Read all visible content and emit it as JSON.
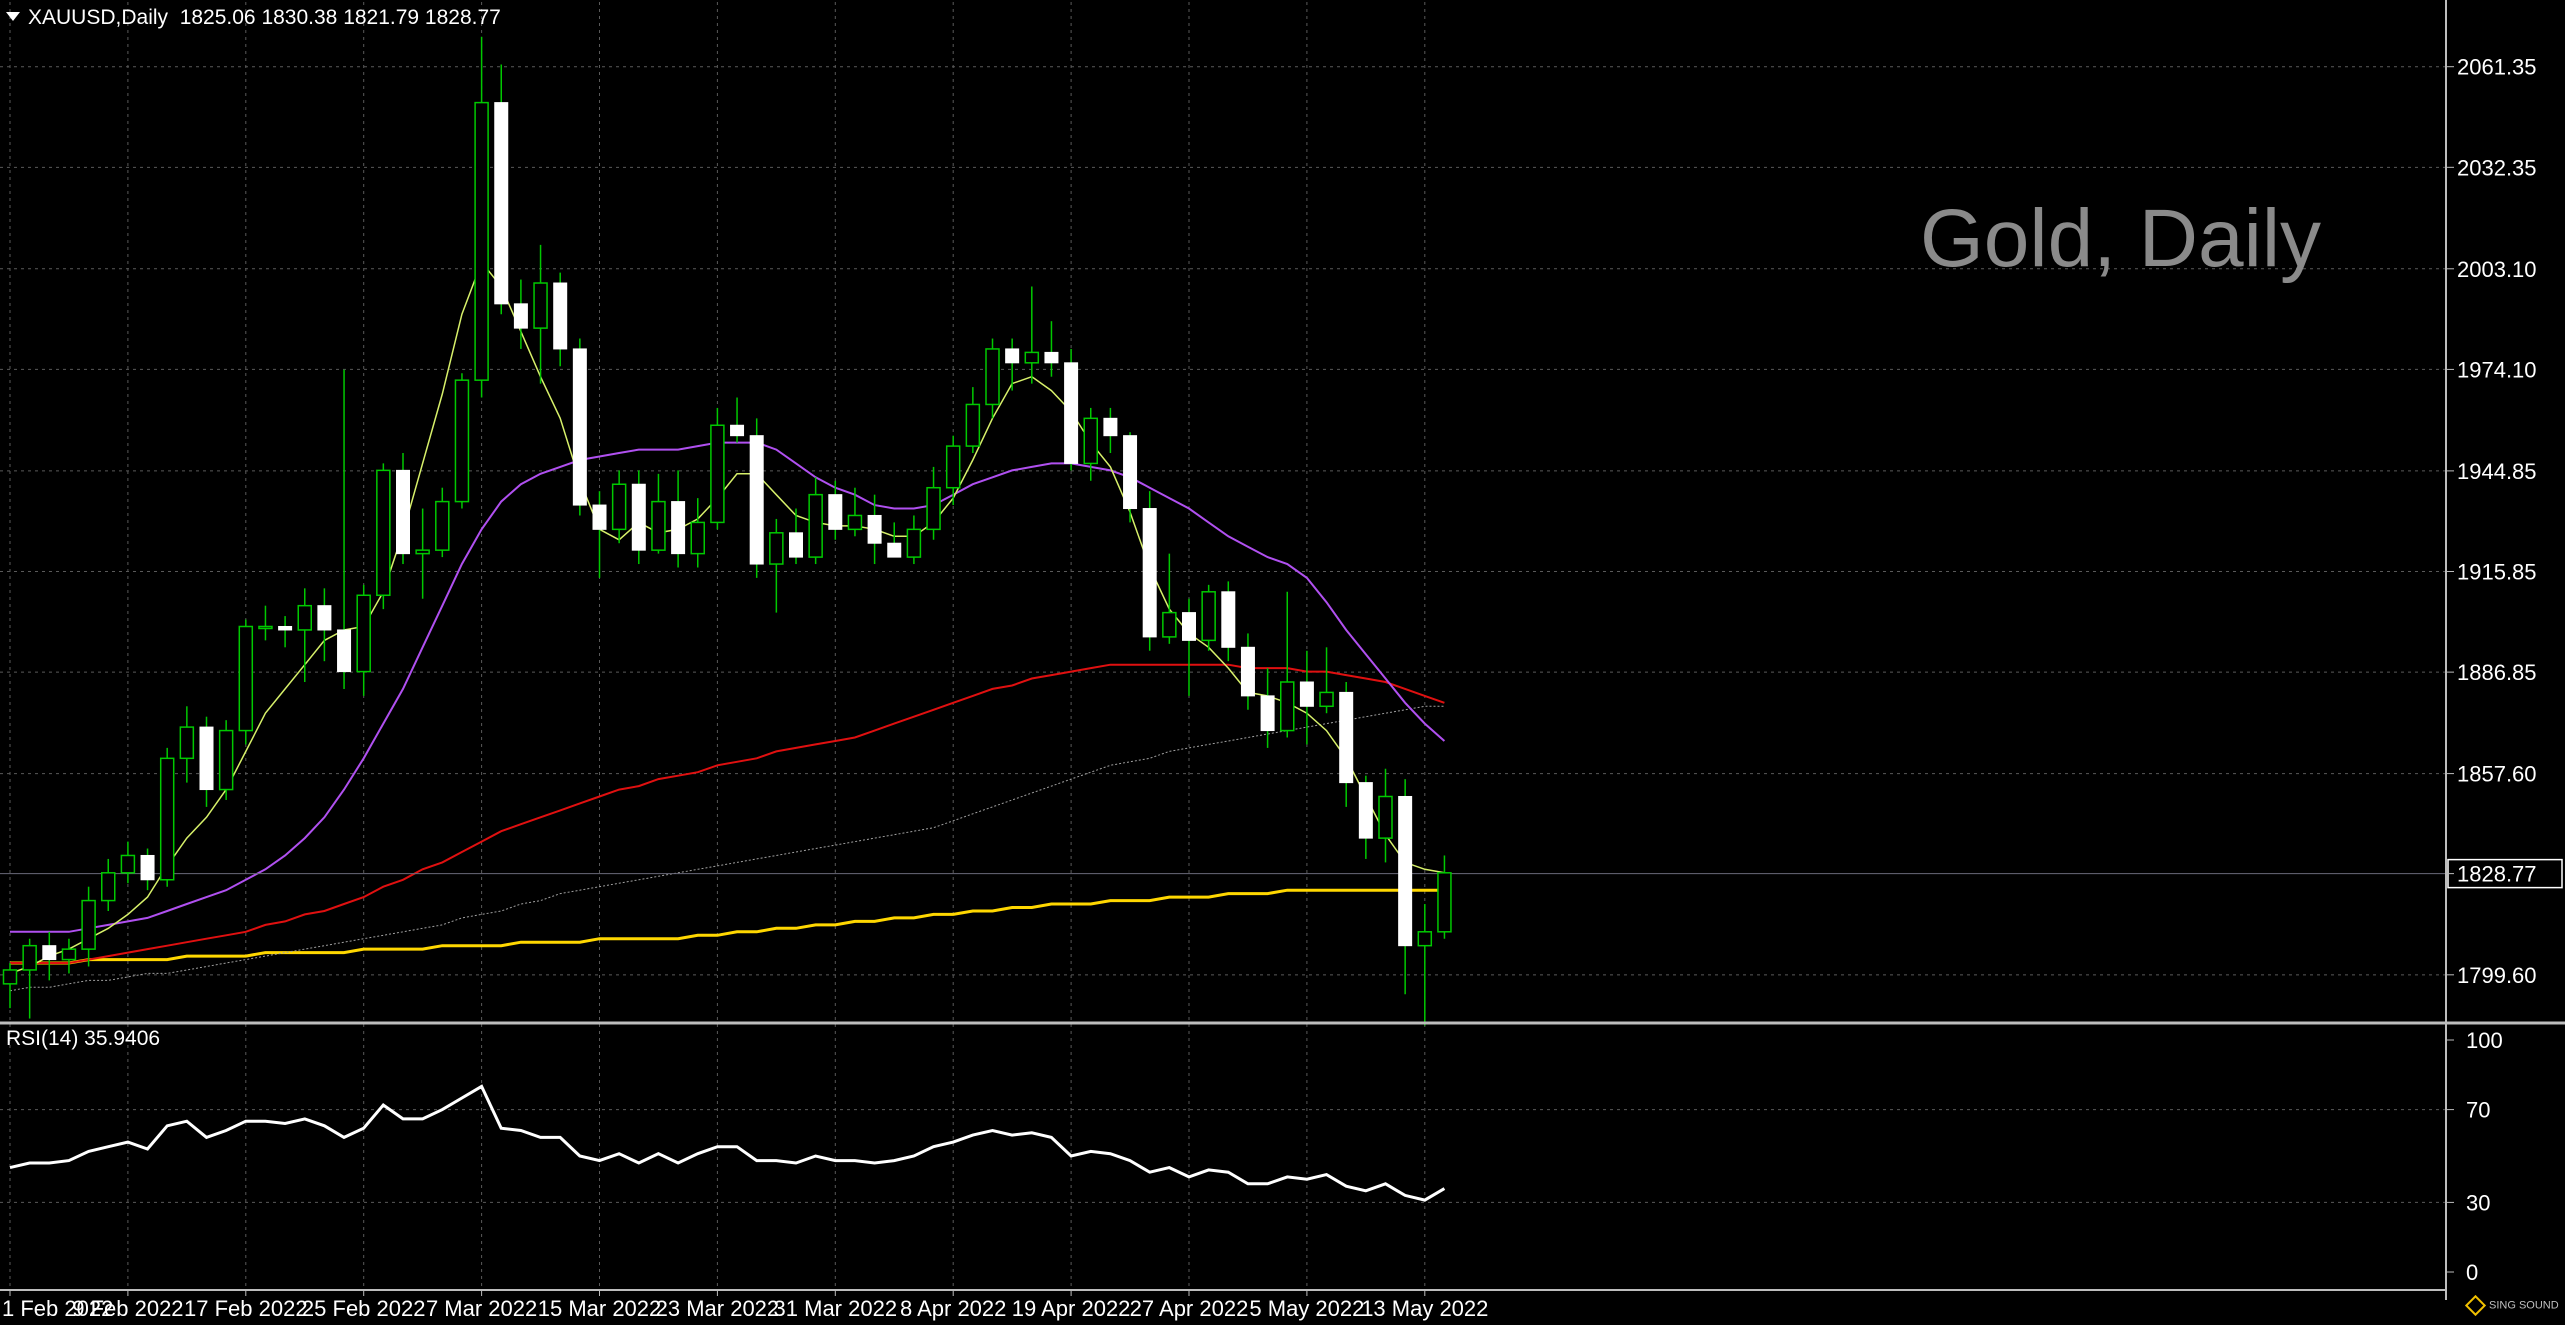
{
  "header": {
    "symbol": "XAUUSD,Daily",
    "ohlc": "1825.06 1830.38 1821.79 1828.77",
    "rsi_label": "RSI(14) 35.9406",
    "watermark": "Gold, Daily",
    "brand": "SING SOUND"
  },
  "colors": {
    "background": "#000000",
    "grid": "#5a5a5a",
    "axis_text": "#ffffff",
    "bull_candle": "#00c800",
    "bear_candle": "#ffffff",
    "ma_fast": "#d7f06a",
    "ma_20": "#b050f0",
    "ma_50": "#e01010",
    "ma_100": "#a0a0a0",
    "ma_200": "#ffd700",
    "rsi_line": "#ffffff",
    "current_price_line": "#6a6a7a"
  },
  "chart_data": [
    {
      "type": "candlestick",
      "title": "XAUUSD,Daily",
      "ylim": [
        1786.0,
        2080.0
      ],
      "y_ticks": [
        1799.6,
        1828.77,
        1857.6,
        1886.85,
        1915.85,
        1944.85,
        1974.1,
        2003.1,
        2032.35,
        2061.35
      ],
      "y_tick_labels": [
        "1799.60",
        "1828.77",
        "1857.60",
        "1886.85",
        "1915.85",
        "1944.85",
        "1974.10",
        "2003.10",
        "2032.35",
        "2061.35"
      ],
      "current_price": 1828.77,
      "x_tick_labels": [
        "1 Feb 2022",
        "9 Feb 2022",
        "17 Feb 2022",
        "25 Feb 2022",
        "7 Mar 2022",
        "15 Mar 2022",
        "23 Mar 2022",
        "31 Mar 2022",
        "8 Apr 2022",
        "19 Apr 2022",
        "27 Apr 2022",
        "5 May 2022",
        "13 May 2022"
      ],
      "dates": [
        "1 Feb 2022",
        "2 Feb 2022",
        "3 Feb 2022",
        "4 Feb 2022",
        "7 Feb 2022",
        "8 Feb 2022",
        "9 Feb 2022",
        "10 Feb 2022",
        "11 Feb 2022",
        "14 Feb 2022",
        "15 Feb 2022",
        "16 Feb 2022",
        "17 Feb 2022",
        "18 Feb 2022",
        "21 Feb 2022",
        "22 Feb 2022",
        "23 Feb 2022",
        "24 Feb 2022",
        "25 Feb 2022",
        "28 Feb 2022",
        "1 Mar 2022",
        "2 Mar 2022",
        "3 Mar 2022",
        "4 Mar 2022",
        "7 Mar 2022",
        "8 Mar 2022",
        "9 Mar 2022",
        "10 Mar 2022",
        "11 Mar 2022",
        "14 Mar 2022",
        "15 Mar 2022",
        "16 Mar 2022",
        "17 Mar 2022",
        "18 Mar 2022",
        "21 Mar 2022",
        "22 Mar 2022",
        "23 Mar 2022",
        "24 Mar 2022",
        "25 Mar 2022",
        "28 Mar 2022",
        "29 Mar 2022",
        "30 Mar 2022",
        "31 Mar 2022",
        "1 Apr 2022",
        "4 Apr 2022",
        "5 Apr 2022",
        "6 Apr 2022",
        "7 Apr 2022",
        "8 Apr 2022",
        "11 Apr 2022",
        "12 Apr 2022",
        "13 Apr 2022",
        "14 Apr 2022",
        "18 Apr 2022",
        "19 Apr 2022",
        "20 Apr 2022",
        "21 Apr 2022",
        "22 Apr 2022",
        "25 Apr 2022",
        "26 Apr 2022",
        "27 Apr 2022",
        "28 Apr 2022",
        "29 Apr 2022",
        "2 May 2022",
        "3 May 2022",
        "4 May 2022",
        "5 May 2022",
        "6 May 2022",
        "9 May 2022",
        "10 May 2022",
        "11 May 2022",
        "12 May 2022",
        "13 May 2022",
        "16 May 2022"
      ],
      "open": [
        1797,
        1801,
        1808,
        1804,
        1807,
        1821,
        1829,
        1834,
        1827,
        1862,
        1871,
        1853,
        1870,
        1900,
        1900,
        1899,
        1906,
        1899,
        1887,
        1909,
        1945,
        1921,
        1922,
        1936,
        1971,
        2051,
        1993,
        1986,
        1999,
        1980,
        1935,
        1928,
        1941,
        1922,
        1936,
        1921,
        1930,
        1958,
        1955,
        1918,
        1927,
        1920,
        1938,
        1928,
        1932,
        1924,
        1920,
        1928,
        1940,
        1952,
        1964,
        1980,
        1976,
        1979,
        1976,
        1947,
        1960,
        1955,
        1934,
        1897,
        1904,
        1896,
        1910,
        1894,
        1880,
        1870,
        1884,
        1877,
        1881,
        1855,
        1839,
        1851,
        1808,
        1812
      ],
      "close": [
        1801,
        1808,
        1804,
        1807,
        1821,
        1829,
        1834,
        1827,
        1862,
        1871,
        1853,
        1870,
        1900,
        1900,
        1899,
        1906,
        1899,
        1887,
        1909,
        1945,
        1921,
        1922,
        1936,
        1971,
        2051,
        1993,
        1986,
        1999,
        1980,
        1935,
        1928,
        1941,
        1922,
        1936,
        1921,
        1930,
        1958,
        1955,
        1918,
        1927,
        1920,
        1938,
        1928,
        1932,
        1924,
        1920,
        1928,
        1940,
        1952,
        1964,
        1980,
        1976,
        1979,
        1976,
        1947,
        1960,
        1955,
        1934,
        1897,
        1904,
        1896,
        1910,
        1894,
        1880,
        1870,
        1884,
        1877,
        1881,
        1855,
        1839,
        1851,
        1808,
        1812,
        1829
      ],
      "high": [
        1803,
        1810,
        1812,
        1810,
        1825,
        1833,
        1838,
        1836,
        1865,
        1877,
        1874,
        1873,
        1902,
        1906,
        1903,
        1911,
        1911,
        1974,
        1912,
        1947,
        1950,
        1934,
        1940,
        1973,
        2070,
        2062,
        2000,
        2010,
        2002,
        1983,
        1939,
        1945,
        1945,
        1944,
        1945,
        1937,
        1963,
        1966,
        1960,
        1931,
        1934,
        1943,
        1942,
        1940,
        1938,
        1930,
        1932,
        1946,
        1955,
        1969,
        1983,
        1983,
        1998,
        1988,
        1980,
        1963,
        1963,
        1956,
        1939,
        1921,
        1908,
        1912,
        1913,
        1898,
        1888,
        1910,
        1893,
        1894,
        1884,
        1857,
        1859,
        1856,
        1820,
        1834
      ],
      "low": [
        1790,
        1787,
        1798,
        1800,
        1802,
        1818,
        1826,
        1824,
        1825,
        1855,
        1848,
        1850,
        1866,
        1896,
        1894,
        1884,
        1890,
        1882,
        1880,
        1905,
        1918,
        1908,
        1920,
        1934,
        1966,
        1990,
        1980,
        1970,
        1975,
        1932,
        1914,
        1924,
        1918,
        1921,
        1917,
        1917,
        1928,
        1953,
        1914,
        1904,
        1918,
        1918,
        1925,
        1926,
        1918,
        1920,
        1918,
        1925,
        1935,
        1950,
        1960,
        1968,
        1970,
        1972,
        1945,
        1942,
        1950,
        1930,
        1893,
        1895,
        1880,
        1893,
        1890,
        1876,
        1865,
        1868,
        1866,
        1875,
        1848,
        1833,
        1832,
        1794,
        1785,
        1810
      ],
      "ma_fast": [
        1800,
        1802,
        1805,
        1807,
        1810,
        1813,
        1817,
        1822,
        1831,
        1839,
        1845,
        1853,
        1864,
        1875,
        1882,
        1889,
        1896,
        1899,
        1900,
        1910,
        1927,
        1947,
        1967,
        1990,
        2005,
        1998,
        1985,
        1972,
        1960,
        1942,
        1928,
        1925,
        1930,
        1927,
        1928,
        1931,
        1937,
        1944,
        1944,
        1938,
        1932,
        1930,
        1929,
        1929,
        1928,
        1926,
        1926,
        1930,
        1937,
        1948,
        1960,
        1970,
        1972,
        1968,
        1962,
        1953,
        1946,
        1933,
        1917,
        1905,
        1898,
        1894,
        1888,
        1881,
        1880,
        1878,
        1875,
        1870,
        1862,
        1851,
        1840,
        1832,
        1830,
        1829
      ],
      "ma_20": [
        1812,
        1812,
        1812,
        1812,
        1813,
        1814,
        1815,
        1816,
        1818,
        1820,
        1822,
        1824,
        1827,
        1830,
        1834,
        1839,
        1845,
        1853,
        1862,
        1872,
        1882,
        1894,
        1906,
        1918,
        1928,
        1936,
        1941,
        1944,
        1946,
        1948,
        1949,
        1950,
        1951,
        1951,
        1951,
        1952,
        1953,
        1953,
        1953,
        1951,
        1947,
        1943,
        1940,
        1938,
        1935,
        1934,
        1934,
        1935,
        1938,
        1941,
        1943,
        1945,
        1946,
        1947,
        1947,
        1946,
        1945,
        1943,
        1940,
        1937,
        1934,
        1930,
        1926,
        1923,
        1920,
        1918,
        1914,
        1907,
        1899,
        1892,
        1885,
        1878,
        1872,
        1867
      ],
      "ma_50": [
        1803,
        1803,
        1803,
        1803,
        1804,
        1805,
        1806,
        1807,
        1808,
        1809,
        1810,
        1811,
        1812,
        1814,
        1815,
        1817,
        1818,
        1820,
        1822,
        1825,
        1827,
        1830,
        1832,
        1835,
        1838,
        1841,
        1843,
        1845,
        1847,
        1849,
        1851,
        1853,
        1854,
        1856,
        1857,
        1858,
        1860,
        1861,
        1862,
        1864,
        1865,
        1866,
        1867,
        1868,
        1870,
        1872,
        1874,
        1876,
        1878,
        1880,
        1882,
        1883,
        1885,
        1886,
        1887,
        1888,
        1889,
        1889,
        1889,
        1889,
        1889,
        1889,
        1889,
        1888,
        1888,
        1888,
        1887,
        1887,
        1886,
        1885,
        1884,
        1882,
        1880,
        1878
      ],
      "ma_100": [
        1795,
        1796,
        1796,
        1797,
        1798,
        1798,
        1799,
        1800,
        1800,
        1801,
        1802,
        1803,
        1804,
        1805,
        1806,
        1807,
        1808,
        1809,
        1810,
        1811,
        1812,
        1813,
        1814,
        1816,
        1817,
        1818,
        1820,
        1821,
        1823,
        1824,
        1825,
        1826,
        1827,
        1828,
        1829,
        1830,
        1831,
        1832,
        1833,
        1834,
        1835,
        1836,
        1837,
        1838,
        1839,
        1840,
        1841,
        1842,
        1844,
        1846,
        1848,
        1850,
        1852,
        1854,
        1856,
        1858,
        1860,
        1861,
        1862,
        1864,
        1865,
        1866,
        1867,
        1868,
        1869,
        1870,
        1871,
        1872,
        1873,
        1874,
        1875,
        1876,
        1877,
        1877
      ],
      "ma_200": [
        1803,
        1803,
        1803,
        1803,
        1804,
        1804,
        1804,
        1804,
        1804,
        1805,
        1805,
        1805,
        1805,
        1806,
        1806,
        1806,
        1806,
        1806,
        1807,
        1807,
        1807,
        1807,
        1808,
        1808,
        1808,
        1808,
        1809,
        1809,
        1809,
        1809,
        1810,
        1810,
        1810,
        1810,
        1810,
        1811,
        1811,
        1812,
        1812,
        1813,
        1813,
        1814,
        1814,
        1815,
        1815,
        1816,
        1816,
        1817,
        1817,
        1818,
        1818,
        1819,
        1819,
        1820,
        1820,
        1820,
        1821,
        1821,
        1821,
        1822,
        1822,
        1822,
        1823,
        1823,
        1823,
        1824,
        1824,
        1824,
        1824,
        1824,
        1824,
        1824,
        1824,
        1824
      ]
    },
    {
      "type": "line",
      "title": "RSI(14) 35.9406",
      "ylim": [
        0,
        100
      ],
      "y_ticks": [
        0,
        30,
        70,
        100
      ],
      "y_tick_labels": [
        "0",
        "30",
        "70",
        "100"
      ],
      "last_value": 35.9406,
      "values": [
        45,
        47,
        47,
        48,
        52,
        54,
        56,
        53,
        63,
        65,
        58,
        61,
        65,
        65,
        64,
        66,
        63,
        58,
        62,
        72,
        66,
        66,
        70,
        75,
        80,
        62,
        61,
        58,
        58,
        50,
        48,
        51,
        47,
        51,
        47,
        51,
        54,
        54,
        48,
        48,
        47,
        50,
        48,
        48,
        47,
        48,
        50,
        54,
        56,
        59,
        61,
        59,
        60,
        58,
        50,
        52,
        51,
        48,
        43,
        45,
        41,
        44,
        43,
        38,
        38,
        41,
        40,
        42,
        37,
        35,
        38,
        33,
        31,
        35.94
      ]
    }
  ]
}
